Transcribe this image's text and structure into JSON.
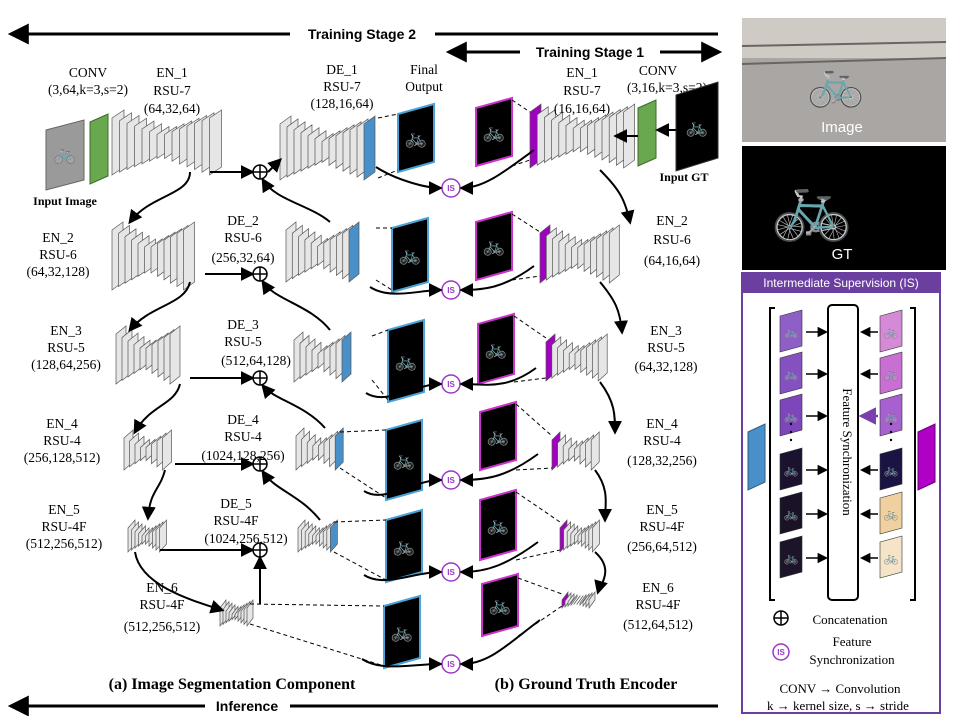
{
  "stages": {
    "training_stage_2": "Training Stage 2",
    "training_stage_1": "Training Stage 1",
    "inference": "Inference"
  },
  "captions": {
    "left": "(a) Image Segmentation Component",
    "right": "(b) Ground Truth Encoder"
  },
  "left_input": {
    "conv_title": "CONV",
    "conv_params": "(3,64,k=3,s=2)",
    "input_label": "Input Image"
  },
  "right_input": {
    "conv_title": "CONV",
    "conv_params": "(3,16,k=3,s=2)",
    "input_label": "Input GT"
  },
  "final_output": {
    "line1": "Final",
    "line2": "Output"
  },
  "left_encoders": [
    {
      "name": "EN_1",
      "type": "RSU-7",
      "params": "(64,32,64)"
    },
    {
      "name": "EN_2",
      "type": "RSU-6",
      "params": "(64,32,128)"
    },
    {
      "name": "EN_3",
      "type": "RSU-5",
      "params": "(128,64,256)"
    },
    {
      "name": "EN_4",
      "type": "RSU-4",
      "params": "(256,128,512)"
    },
    {
      "name": "EN_5",
      "type": "RSU-4F",
      "params": "(512,256,512)"
    },
    {
      "name": "EN_6",
      "type": "RSU-4F",
      "params": "(512,256,512)"
    }
  ],
  "decoders": [
    {
      "name": "DE_1",
      "type": "RSU-7",
      "params": "(128,16,64)"
    },
    {
      "name": "DE_2",
      "type": "RSU-6",
      "params": "(256,32,64)"
    },
    {
      "name": "DE_3",
      "type": "RSU-5",
      "params": "(512,64,128)"
    },
    {
      "name": "DE_4",
      "type": "RSU-4",
      "params": "(1024,128,256)"
    },
    {
      "name": "DE_5",
      "type": "RSU-4F",
      "params": "(1024,256,512)"
    }
  ],
  "right_encoders": [
    {
      "name": "EN_1",
      "type": "RSU-7",
      "params": "(16,16,64)"
    },
    {
      "name": "EN_2",
      "type": "RSU-6",
      "params": "(64,16,64)"
    },
    {
      "name": "EN_3",
      "type": "RSU-5",
      "params": "(64,32,128)"
    },
    {
      "name": "EN_4",
      "type": "RSU-4",
      "params": "(128,32,256)"
    },
    {
      "name": "EN_5",
      "type": "RSU-4F",
      "params": "(256,64,512)"
    },
    {
      "name": "EN_6",
      "type": "RSU-4F",
      "params": "(512,64,512)"
    }
  ],
  "is_label": "IS",
  "side_panel": {
    "image_label": "Image",
    "gt_label": "GT",
    "header": "Intermediate Supervision (IS)",
    "sync_label": "Feature Synchronization",
    "legend_concat": "Concatenation",
    "legend_fs_line1": "Feature",
    "legend_fs_line2": "Synchronization",
    "legend_conv": "CONV → Convolution",
    "legend_ks": "k → kernel size, s → stride"
  },
  "colors": {
    "conv_green": "#6aa84f",
    "decoder_blue": "#4a90c8",
    "gt_purple": "#a000c0",
    "output_border": "#4aa3d8",
    "gt_border": "#cc33cc",
    "panel_purple": "#6b3fa0",
    "is_border": "#9b37c6"
  }
}
